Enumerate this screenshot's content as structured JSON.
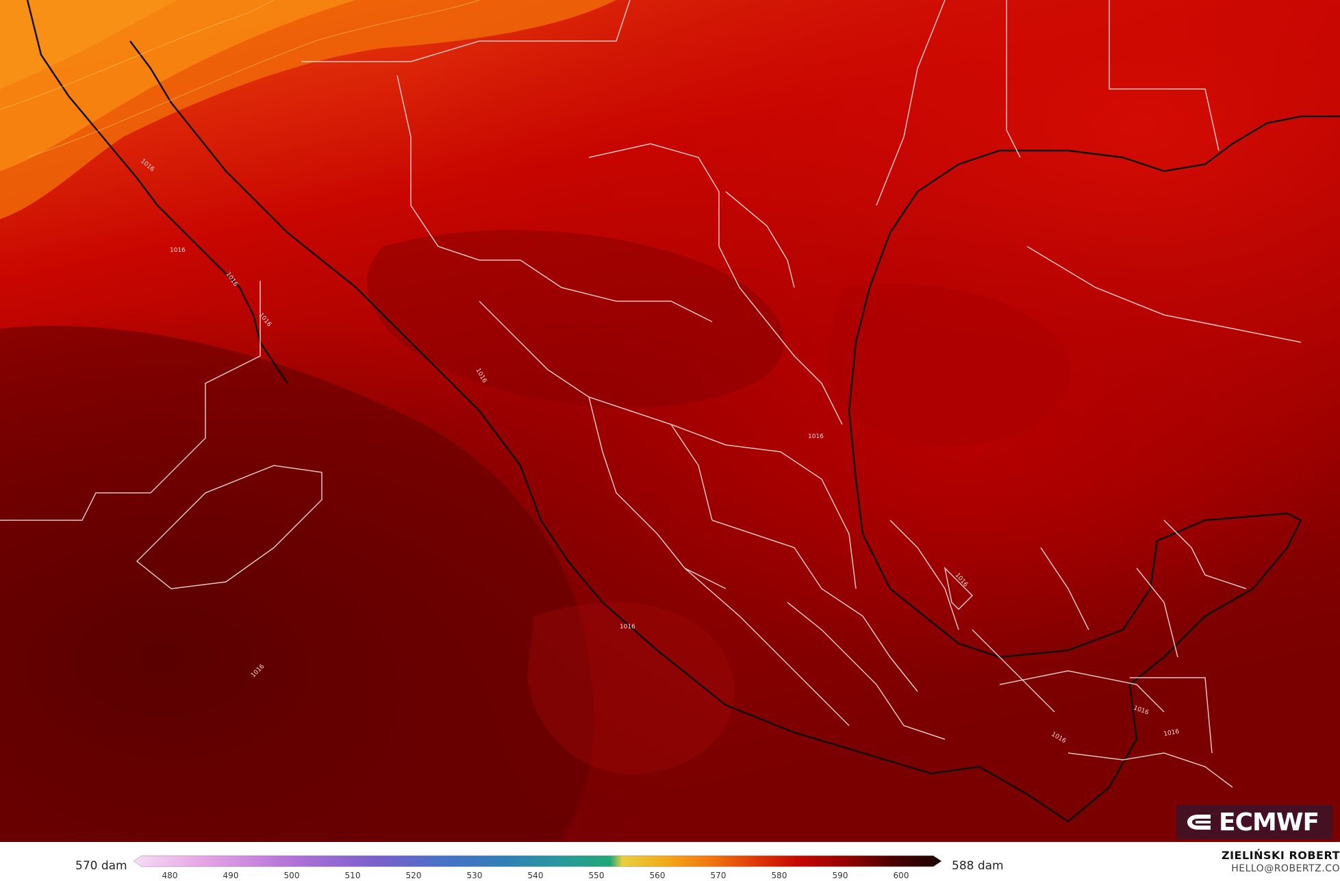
{
  "map": {
    "contour_label": "1016",
    "contour_labels_shown": 12
  },
  "logo": {
    "text": "ECMWF"
  },
  "legend": {
    "left_label": "570 dam",
    "right_label": "588 dam",
    "ticks": [
      "480",
      "490",
      "500",
      "510",
      "520",
      "530",
      "540",
      "550",
      "560",
      "570",
      "580",
      "590",
      "600"
    ]
  },
  "credit": {
    "name": "ZIELIŃSKI ROBERT",
    "email": "HELLO@ROBERTZ.CO"
  },
  "colors": {
    "hot_orange": "#f26a00",
    "red": "#d81008",
    "deep_red": "#b10000",
    "dark_red": "#8a0000",
    "darkest_red": "#5c0000"
  }
}
